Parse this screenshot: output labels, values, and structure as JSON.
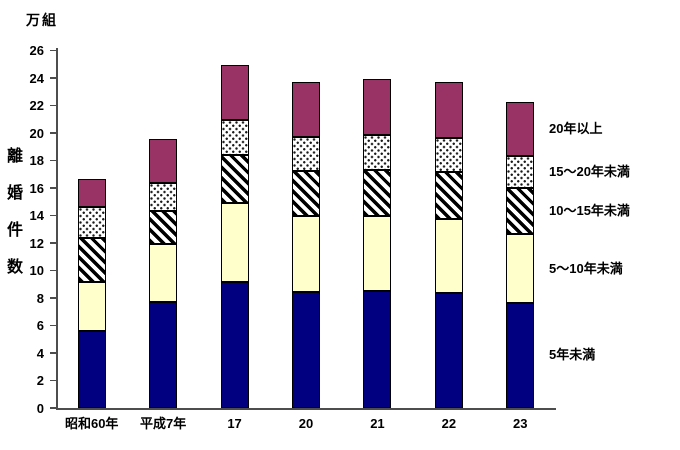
{
  "chart_data": {
    "type": "bar",
    "variant": "stacked-vertical",
    "title": "",
    "unit_label": "万組",
    "y_axis_title": "離婚件数",
    "categories": [
      "昭和60年",
      "平成7年",
      "17",
      "20",
      "21",
      "22",
      "23"
    ],
    "series": [
      {
        "name": "5年未満",
        "values": [
          5.6,
          7.7,
          9.1,
          8.4,
          8.5,
          8.3,
          7.6
        ],
        "pattern": "solid-navy",
        "color": "#000080"
      },
      {
        "name": "5〜10年未満",
        "values": [
          3.5,
          4.2,
          5.8,
          5.5,
          5.4,
          5.4,
          5.0
        ],
        "pattern": "solid-yellow",
        "color": "#FFFFCC"
      },
      {
        "name": "10〜15年未満",
        "values": [
          3.2,
          2.4,
          3.5,
          3.3,
          3.4,
          3.4,
          3.4
        ],
        "pattern": "diagonal-stripes",
        "color": "#000000"
      },
      {
        "name": "15〜20年未満",
        "values": [
          2.3,
          2.0,
          2.5,
          2.5,
          2.5,
          2.5,
          2.3
        ],
        "pattern": "dots",
        "color": "#1a1a1a"
      },
      {
        "name": "20年以上",
        "values": [
          2.0,
          3.2,
          4.0,
          4.0,
          4.1,
          4.1,
          3.9
        ],
        "pattern": "solid-plum",
        "color": "#993366"
      }
    ],
    "totals": [
      16.6,
      19.5,
      24.9,
      23.7,
      23.9,
      23.7,
      22.2
    ],
    "ylim": [
      0,
      26
    ],
    "ytick_step": 2,
    "grid": false,
    "legend_position": "right-inline",
    "bar_outline_color": "#000000",
    "axis_color": "#4d4d4d"
  }
}
